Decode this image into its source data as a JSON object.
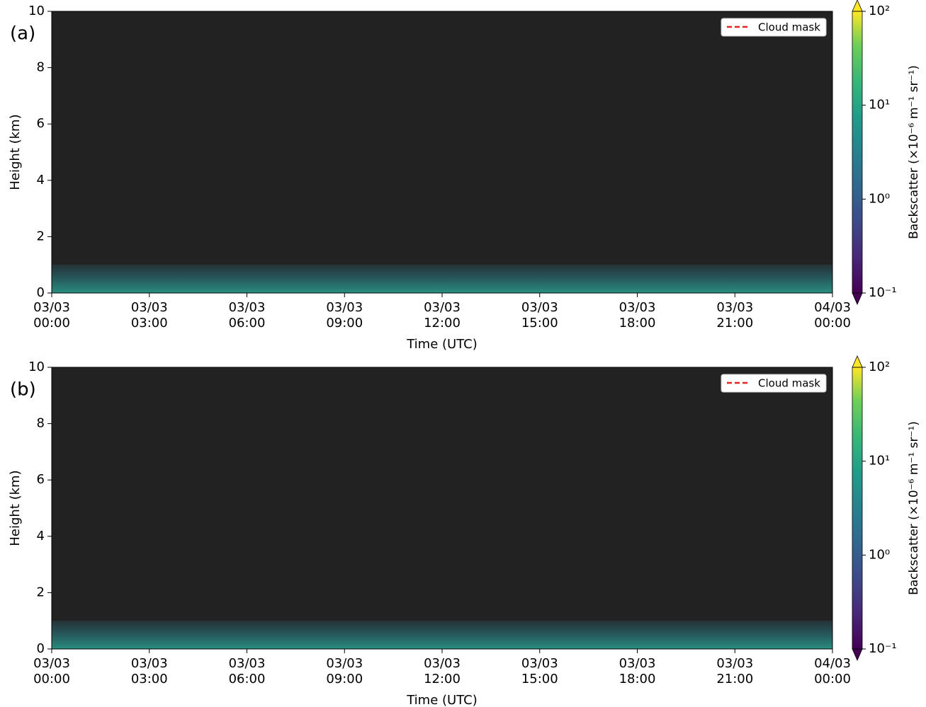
{
  "chart_data": [
    {
      "type": "heatmap",
      "panel_label": "(a)",
      "xlabel": "Time (UTC)",
      "ylabel": "Height (km)",
      "xlim": [
        0,
        24
      ],
      "xticks": [
        {
          "value": 0,
          "label": "03/03\n00:00"
        },
        {
          "value": 3,
          "label": "03/03\n03:00"
        },
        {
          "value": 6,
          "label": "03/03\n06:00"
        },
        {
          "value": 9,
          "label": "03/03\n09:00"
        },
        {
          "value": 12,
          "label": "03/03\n12:00"
        },
        {
          "value": 15,
          "label": "03/03\n15:00"
        },
        {
          "value": 18,
          "label": "03/03\n18:00"
        },
        {
          "value": 21,
          "label": "03/03\n21:00"
        },
        {
          "value": 24,
          "label": "04/03\n00:00"
        }
      ],
      "ylim": [
        0,
        10
      ],
      "yticks": [
        0,
        2,
        4,
        6,
        8,
        10
      ],
      "legend": {
        "name": "Cloud mask",
        "color": "#e8231f",
        "style": "dashed",
        "loc": "upper right"
      },
      "colorbar": {
        "label": "Backscatter (×10⁻⁶ m⁻¹ sr⁻¹)",
        "colormap": "viridis",
        "log": true,
        "lim": [
          0.1,
          100
        ],
        "ticks": [
          {
            "value": 0.1,
            "label": "10⁻¹"
          },
          {
            "value": 1,
            "label": "10⁰"
          },
          {
            "value": 10,
            "label": "10¹"
          },
          {
            "value": 100,
            "label": "10²"
          }
        ]
      }
    },
    {
      "type": "heatmap",
      "panel_label": "(b)",
      "xlabel": "Time (UTC)",
      "ylabel": "Height (km)",
      "xlim": [
        0,
        24
      ],
      "xticks": [
        {
          "value": 0,
          "label": "03/03\n00:00"
        },
        {
          "value": 3,
          "label": "03/03\n03:00"
        },
        {
          "value": 6,
          "label": "03/03\n06:00"
        },
        {
          "value": 9,
          "label": "03/03\n09:00"
        },
        {
          "value": 12,
          "label": "03/03\n12:00"
        },
        {
          "value": 15,
          "label": "03/03\n15:00"
        },
        {
          "value": 18,
          "label": "03/03\n18:00"
        },
        {
          "value": 21,
          "label": "03/03\n21:00"
        },
        {
          "value": 24,
          "label": "04/03\n00:00"
        }
      ],
      "ylim": [
        0,
        10
      ],
      "yticks": [
        0,
        2,
        4,
        6,
        8,
        10
      ],
      "legend": {
        "name": "Cloud mask",
        "color": "#e8231f",
        "style": "dashed",
        "loc": "upper right"
      },
      "colorbar": {
        "label": "Backscatter (×10⁻⁶ m⁻¹ sr⁻¹)",
        "colormap": "viridis",
        "log": true,
        "lim": [
          0.1,
          100
        ],
        "ticks": [
          {
            "value": 0.1,
            "label": "10⁻¹"
          },
          {
            "value": 1,
            "label": "10⁰"
          },
          {
            "value": 10,
            "label": "10¹"
          },
          {
            "value": 100,
            "label": "10²"
          }
        ]
      }
    }
  ]
}
